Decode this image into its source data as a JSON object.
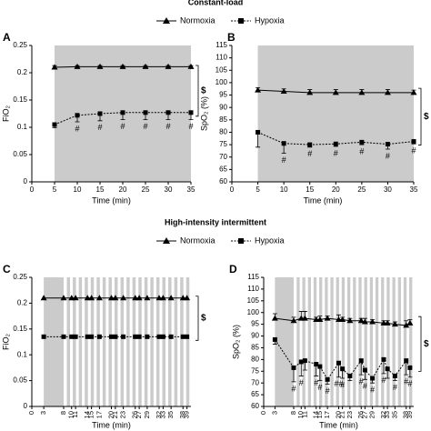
{
  "chart_data": [
    {
      "type": "line",
      "section_title": "Constant-load",
      "panel": "A",
      "ylabel": "FiO₂",
      "xlabel": "Time (min)",
      "x": [
        5,
        10,
        15,
        20,
        25,
        30,
        35
      ],
      "xlim": [
        0,
        35
      ],
      "xticks": [
        0,
        5,
        10,
        15,
        20,
        25,
        30,
        35
      ],
      "ylim": [
        0,
        0.25
      ],
      "yticks": [
        0,
        0.05,
        0.1,
        0.15,
        0.2,
        0.25
      ],
      "shaded": [
        [
          5,
          35
        ]
      ],
      "shade_color": "#cbcbcb",
      "series": [
        {
          "name": "Normoxia",
          "color": "#000000",
          "marker": "triangle",
          "dash": false,
          "error_dir": "up",
          "values": [
            0.21,
            0.211,
            0.211,
            0.211,
            0.211,
            0.211,
            0.211
          ],
          "errors": [
            0.003,
            0.002,
            0.002,
            0.002,
            0.002,
            0.002,
            0.002
          ]
        },
        {
          "name": "Hypoxia",
          "color": "#000000",
          "marker": "square",
          "dash": true,
          "error_dir": "down",
          "values": [
            0.105,
            0.122,
            0.125,
            0.127,
            0.127,
            0.127,
            0.127
          ],
          "errors": [
            0.006,
            0.012,
            0.013,
            0.013,
            0.013,
            0.013,
            0.013
          ]
        }
      ],
      "annotations": [
        {
          "x": 10,
          "text": "#"
        },
        {
          "x": 15,
          "text": "#"
        },
        {
          "x": 20,
          "text": "#"
        },
        {
          "x": 25,
          "text": "#"
        },
        {
          "x": 30,
          "text": "#"
        },
        {
          "x": 35,
          "text": "#"
        }
      ],
      "bracket_label": "$"
    },
    {
      "type": "line",
      "panel": "B",
      "ylabel": "SpO₂ (%)",
      "xlabel": "Time (min)",
      "x": [
        5,
        10,
        15,
        20,
        25,
        30,
        35
      ],
      "xlim": [
        0,
        35
      ],
      "xticks": [
        0,
        5,
        10,
        15,
        20,
        25,
        30,
        35
      ],
      "ylim": [
        60,
        115
      ],
      "yticks": [
        60,
        65,
        70,
        75,
        80,
        85,
        90,
        95,
        100,
        105,
        110,
        115
      ],
      "shaded": [
        [
          5,
          35
        ]
      ],
      "shade_color": "#cbcbcb",
      "series": [
        {
          "name": "Normoxia",
          "color": "#000000",
          "marker": "triangle",
          "dash": false,
          "error_dir": "up",
          "values": [
            97,
            96.5,
            96,
            96,
            96,
            96,
            96
          ],
          "errors": [
            1,
            1,
            1.2,
            1.2,
            1.2,
            1.2,
            1
          ]
        },
        {
          "name": "Hypoxia",
          "color": "#000000",
          "marker": "square",
          "dash": true,
          "error_dir": "down",
          "values": [
            80,
            75.5,
            75,
            75.3,
            76,
            75.2,
            76.3
          ],
          "errors": [
            6,
            4,
            1,
            1,
            1,
            2,
            1
          ]
        }
      ],
      "annotations": [
        {
          "x": 10,
          "text": "#"
        },
        {
          "x": 15,
          "text": "#"
        },
        {
          "x": 20,
          "text": "#"
        },
        {
          "x": 25,
          "text": "#"
        },
        {
          "x": 30,
          "text": "#"
        },
        {
          "x": 35,
          "text": "#"
        }
      ],
      "bracket_label": "$"
    },
    {
      "type": "line",
      "section_title": "High-intensity intermittent",
      "panel": "C",
      "ylabel": "FiO₂",
      "xlabel": "Time (min)",
      "x": [
        3,
        8,
        10,
        11,
        14,
        15,
        17,
        20,
        21,
        23,
        26,
        27,
        29,
        32,
        33,
        35,
        38,
        39
      ],
      "xlim": [
        0,
        40
      ],
      "xticks": [
        0,
        3,
        8,
        10,
        11,
        14,
        15,
        17,
        20,
        21,
        23,
        26,
        27,
        29,
        32,
        33,
        35,
        38,
        39
      ],
      "ylim": [
        0,
        0.25
      ],
      "yticks": [
        0,
        0.05,
        0.1,
        0.15,
        0.2,
        0.25
      ],
      "shaded": [
        [
          3,
          8
        ],
        [
          8.8,
          9.6
        ],
        [
          10.3,
          11.1
        ],
        [
          11.8,
          12.6
        ],
        [
          13.3,
          14.1
        ],
        [
          14.8,
          15.6
        ],
        [
          16.3,
          17.1
        ],
        [
          17.8,
          18.6
        ],
        [
          19.3,
          20.1
        ],
        [
          20.8,
          21.6
        ],
        [
          22.3,
          23.1
        ],
        [
          23.8,
          24.6
        ],
        [
          25.3,
          26.1
        ],
        [
          26.8,
          27.6
        ],
        [
          28.3,
          29.1
        ],
        [
          29.8,
          30.6
        ],
        [
          31.3,
          32.1
        ],
        [
          32.8,
          33.6
        ],
        [
          34.3,
          35.1
        ],
        [
          35.8,
          36.6
        ],
        [
          37.3,
          38.1
        ],
        [
          38.8,
          39.6
        ]
      ],
      "shade_color": "#cbcbcb",
      "series": [
        {
          "name": "Normoxia",
          "color": "#000000",
          "marker": "triangle",
          "dash": false,
          "values": [
            0.21,
            0.21,
            0.21,
            0.21,
            0.21,
            0.21,
            0.21,
            0.21,
            0.21,
            0.21,
            0.21,
            0.21,
            0.21,
            0.21,
            0.21,
            0.21,
            0.21,
            0.21
          ]
        },
        {
          "name": "Hypoxia",
          "color": "#000000",
          "marker": "square",
          "dash": true,
          "values": [
            0.135,
            0.135,
            0.135,
            0.135,
            0.135,
            0.135,
            0.135,
            0.135,
            0.135,
            0.135,
            0.135,
            0.135,
            0.135,
            0.135,
            0.135,
            0.135,
            0.135,
            0.135
          ]
        }
      ],
      "bracket_label": "$"
    },
    {
      "type": "line",
      "panel": "D",
      "ylabel": "SpO₂ (%)",
      "xlabel": "Time (min)",
      "x": [
        3,
        8,
        10,
        11,
        14,
        15,
        17,
        20,
        21,
        23,
        26,
        27,
        29,
        32,
        33,
        35,
        38,
        39
      ],
      "xlim": [
        0,
        40
      ],
      "xticks": [
        0,
        3,
        8,
        10,
        11,
        14,
        15,
        17,
        20,
        21,
        23,
        26,
        27,
        29,
        32,
        33,
        35,
        38,
        39
      ],
      "ylim": [
        60,
        115
      ],
      "yticks": [
        60,
        65,
        70,
        75,
        80,
        85,
        90,
        95,
        100,
        105,
        110,
        115
      ],
      "shaded": [
        [
          3,
          8
        ],
        [
          8.8,
          9.6
        ],
        [
          10.3,
          11.1
        ],
        [
          11.8,
          12.6
        ],
        [
          13.3,
          14.1
        ],
        [
          14.8,
          15.6
        ],
        [
          16.3,
          17.1
        ],
        [
          17.8,
          18.6
        ],
        [
          19.3,
          20.1
        ],
        [
          20.8,
          21.6
        ],
        [
          22.3,
          23.1
        ],
        [
          23.8,
          24.6
        ],
        [
          25.3,
          26.1
        ],
        [
          26.8,
          27.6
        ],
        [
          28.3,
          29.1
        ],
        [
          29.8,
          30.6
        ],
        [
          31.3,
          32.1
        ],
        [
          32.8,
          33.6
        ],
        [
          34.3,
          35.1
        ],
        [
          35.8,
          36.6
        ],
        [
          37.3,
          38.1
        ],
        [
          38.8,
          39.6
        ]
      ],
      "shade_color": "#cbcbcb",
      "series": [
        {
          "name": "Normoxia",
          "color": "#000000",
          "marker": "triangle",
          "dash": false,
          "error_dir": "up",
          "values": [
            97.5,
            96.5,
            97.5,
            97.5,
            97,
            97,
            97.5,
            97,
            97,
            96.5,
            96.5,
            96,
            96,
            95.5,
            95.5,
            95,
            94.5,
            95.5
          ],
          "errors": [
            2,
            1.5,
            3,
            3,
            1,
            1.5,
            1,
            2,
            1,
            1,
            1,
            1.5,
            1,
            1,
            1,
            1,
            2,
            1.5
          ]
        },
        {
          "name": "Hypoxia",
          "color": "#000000",
          "marker": "square",
          "dash": true,
          "error_dir": "down",
          "values": [
            88.5,
            76.5,
            79,
            79.5,
            78,
            77,
            71.5,
            78.5,
            76,
            73,
            79.5,
            75.5,
            72,
            80,
            76,
            73,
            79.5,
            76.5
          ],
          "errors": [
            2,
            6,
            6,
            4,
            5,
            6,
            2,
            6,
            4,
            2,
            6,
            4,
            2,
            6,
            4,
            2,
            6,
            4
          ]
        }
      ],
      "annotations": [
        {
          "x": 8,
          "text": "#"
        },
        {
          "x": 10,
          "text": "#"
        },
        {
          "x": 14,
          "text": "#"
        },
        {
          "x": 15,
          "text": "#"
        },
        {
          "x": 17,
          "text": "#"
        },
        {
          "x": 20,
          "text": "##"
        },
        {
          "x": 21,
          "text": "#"
        },
        {
          "x": 26,
          "text": "#"
        },
        {
          "x": 27,
          "text": "#"
        },
        {
          "x": 29,
          "text": "#"
        },
        {
          "x": 32,
          "text": "#"
        },
        {
          "x": 35,
          "text": "#"
        },
        {
          "x": 38,
          "text": "#"
        },
        {
          "x": 39,
          "text": "#"
        }
      ],
      "bracket_label": "$"
    }
  ]
}
